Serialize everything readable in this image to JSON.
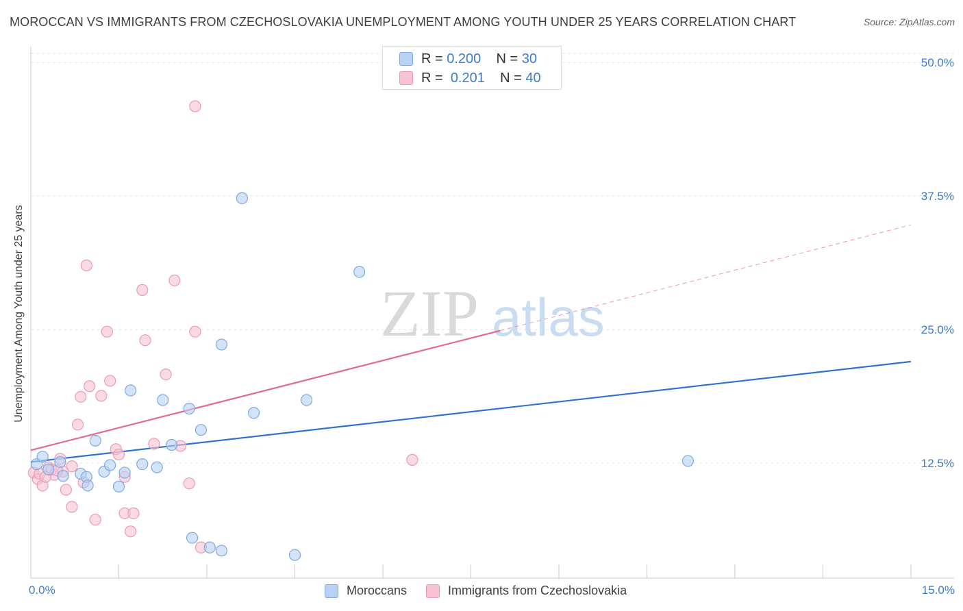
{
  "title": "MOROCCAN VS IMMIGRANTS FROM CZECHOSLOVAKIA UNEMPLOYMENT AMONG YOUTH UNDER 25 YEARS CORRELATION CHART",
  "source": "Source: ZipAtlas.com",
  "watermark": {
    "zip": "ZIP",
    "atlas": "atlas"
  },
  "legend": {
    "r_label": "R =",
    "n_label": "N =",
    "rows": [
      {
        "r": "0.200",
        "n": "30"
      },
      {
        "r": "0.201",
        "n": "40"
      }
    ]
  },
  "bottom_legend": [
    "Moroccans",
    "Immigrants from Czechoslovakia"
  ],
  "colors": {
    "blue_fill": "#b8d2f3",
    "blue_stroke": "#7ea9e0",
    "blue_line": "#2f73cc",
    "pink_fill": "#f7c3d3",
    "pink_stroke": "#ec9ab4",
    "pink_line": "#e06c94",
    "tick_text": "#3d7cc9",
    "grid": "#e3e3e3"
  },
  "chart_data": {
    "type": "scatter",
    "title": "MOROCCAN VS IMMIGRANTS FROM CZECHOSLOVAKIA UNEMPLOYMENT AMONG YOUTH UNDER 25 YEARS CORRELATION CHART",
    "xlabel": "",
    "ylabel": "Unemployment Among Youth under 25 years",
    "xlim": [
      0,
      15
    ],
    "ylim": [
      2.5,
      52
    ],
    "x_tick_labels": [
      "0.0%",
      "15.0%"
    ],
    "y_ticks": [
      12.5,
      25.0,
      37.5,
      50.0
    ],
    "y_tick_labels": [
      "12.5%",
      "25.0%",
      "37.5%",
      "50.0%"
    ],
    "grid": true,
    "legend_position": "top-center",
    "series": [
      {
        "name": "Moroccans",
        "r": 0.2,
        "n": 30,
        "points": [
          [
            0.1,
            12.4
          ],
          [
            0.2,
            13.1
          ],
          [
            0.3,
            11.9
          ],
          [
            0.5,
            12.6
          ],
          [
            0.55,
            11.3
          ],
          [
            0.85,
            11.5
          ],
          [
            0.95,
            11.2
          ],
          [
            0.97,
            10.4
          ],
          [
            1.1,
            14.6
          ],
          [
            1.25,
            11.7
          ],
          [
            1.35,
            12.3
          ],
          [
            1.5,
            10.3
          ],
          [
            1.6,
            11.6
          ],
          [
            1.7,
            19.3
          ],
          [
            1.9,
            12.4
          ],
          [
            2.15,
            12.1
          ],
          [
            2.25,
            18.4
          ],
          [
            2.4,
            14.2
          ],
          [
            2.7,
            17.6
          ],
          [
            2.75,
            5.5
          ],
          [
            2.9,
            15.6
          ],
          [
            3.05,
            4.6
          ],
          [
            3.25,
            4.3
          ],
          [
            3.25,
            23.6
          ],
          [
            3.6,
            37.3
          ],
          [
            3.8,
            17.2
          ],
          [
            4.5,
            3.9
          ],
          [
            4.7,
            18.4
          ],
          [
            5.6,
            30.4
          ],
          [
            11.2,
            12.7
          ]
        ],
        "trend": {
          "x": [
            0,
            15
          ],
          "y": [
            12.6,
            22.0
          ]
        }
      },
      {
        "name": "Immigrants from Czechoslovakia",
        "r": 0.201,
        "n": 40,
        "points": [
          [
            0.05,
            11.6
          ],
          [
            0.12,
            11.0
          ],
          [
            0.2,
            10.4
          ],
          [
            0.3,
            12.1
          ],
          [
            0.4,
            11.4
          ],
          [
            0.5,
            12.9
          ],
          [
            0.6,
            10.0
          ],
          [
            0.7,
            8.4
          ],
          [
            0.7,
            12.2
          ],
          [
            0.8,
            16.1
          ],
          [
            0.85,
            18.7
          ],
          [
            0.9,
            10.7
          ],
          [
            0.95,
            31.0
          ],
          [
            1.0,
            19.7
          ],
          [
            1.1,
            7.2
          ],
          [
            1.2,
            18.8
          ],
          [
            1.3,
            24.8
          ],
          [
            1.35,
            20.2
          ],
          [
            1.45,
            13.8
          ],
          [
            1.5,
            13.3
          ],
          [
            1.6,
            7.8
          ],
          [
            1.6,
            11.2
          ],
          [
            1.7,
            6.1
          ],
          [
            1.75,
            7.8
          ],
          [
            1.9,
            28.7
          ],
          [
            1.95,
            24.0
          ],
          [
            2.1,
            14.3
          ],
          [
            2.3,
            20.8
          ],
          [
            2.45,
            29.6
          ],
          [
            2.55,
            14.1
          ],
          [
            2.7,
            10.6
          ],
          [
            2.8,
            24.8
          ],
          [
            2.9,
            4.6
          ],
          [
            2.8,
            45.9
          ],
          [
            6.5,
            12.8
          ],
          [
            0.15,
            11.5
          ],
          [
            0.35,
            11.9
          ],
          [
            0.25,
            11.2
          ],
          [
            0.55,
            11.7
          ],
          [
            0.45,
            11.8
          ]
        ],
        "trend": {
          "x": [
            0,
            8.0
          ],
          "y": [
            13.7,
            24.9
          ]
        },
        "trend_dashed": {
          "x": [
            8.0,
            15
          ],
          "y": [
            24.9,
            34.8
          ]
        }
      }
    ]
  }
}
